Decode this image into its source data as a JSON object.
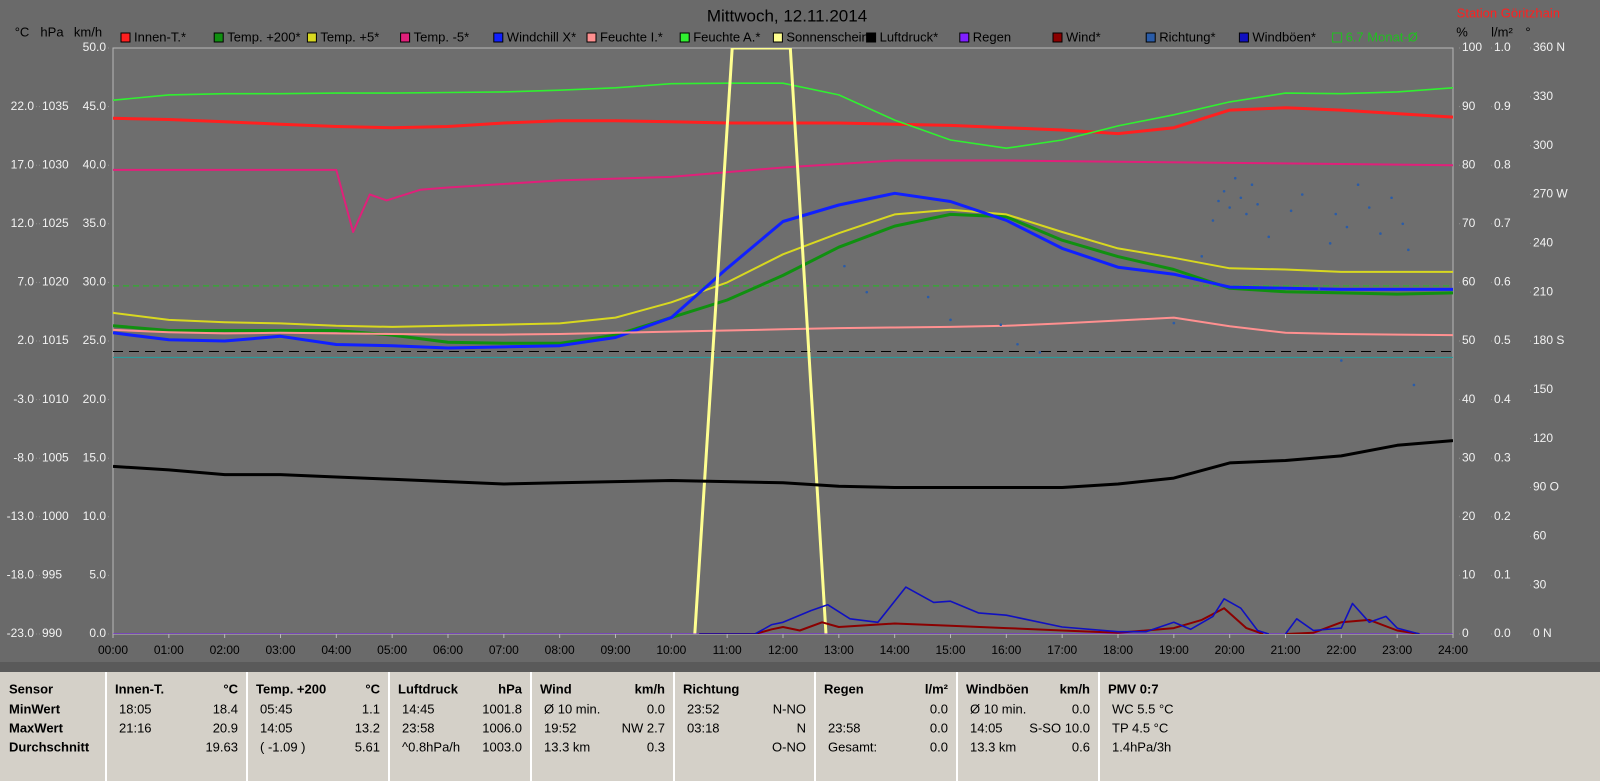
{
  "chart_data": {
    "type": "line",
    "title": "Mittwoch, 12.11.2014",
    "station": "Station Göritzhain",
    "xlim": [
      0,
      24
    ],
    "xticks": [
      {
        "value": 0,
        "label": "00:00"
      },
      {
        "value": 1,
        "label": "01:00"
      },
      {
        "value": 2,
        "label": "02:00"
      },
      {
        "value": 3,
        "label": "03:00"
      },
      {
        "value": 4,
        "label": "04:00"
      },
      {
        "value": 5,
        "label": "05:00"
      },
      {
        "value": 6,
        "label": "06:00"
      },
      {
        "value": 7,
        "label": "07:00"
      },
      {
        "value": 8,
        "label": "08:00"
      },
      {
        "value": 9,
        "label": "09:00"
      },
      {
        "value": 10,
        "label": "10:00"
      },
      {
        "value": 11,
        "label": "11:00"
      },
      {
        "value": 12,
        "label": "12:00"
      },
      {
        "value": 13,
        "label": "13:00"
      },
      {
        "value": 14,
        "label": "14:00"
      },
      {
        "value": 15,
        "label": "15:00"
      },
      {
        "value": 16,
        "label": "16:00"
      },
      {
        "value": 17,
        "label": "17:00"
      },
      {
        "value": 18,
        "label": "18:00"
      },
      {
        "value": 19,
        "label": "19:00"
      },
      {
        "value": 20,
        "label": "20:00"
      },
      {
        "value": 21,
        "label": "21:00"
      },
      {
        "value": 22,
        "label": "22:00"
      },
      {
        "value": 23,
        "label": "23:00"
      },
      {
        "value": 24,
        "label": "24:00"
      }
    ],
    "axes": {
      "temp": {
        "unit": "°C",
        "lim": [
          -23,
          27
        ],
        "ticks": [
          {
            "value": -23,
            "label": "-23.0"
          },
          {
            "value": -18,
            "label": "-18.0"
          },
          {
            "value": -13,
            "label": "-13.0"
          },
          {
            "value": -8,
            "label": "-8.0"
          },
          {
            "value": -3,
            "label": "-3.0"
          },
          {
            "value": 2,
            "label": "2.0"
          },
          {
            "value": 7,
            "label": "7.0"
          },
          {
            "value": 12,
            "label": "12.0"
          },
          {
            "value": 17,
            "label": "17.0"
          },
          {
            "value": 22,
            "label": "22.0"
          }
        ]
      },
      "pressure": {
        "unit": "hPa",
        "lim": [
          990,
          1040
        ],
        "ticks": [
          990,
          995,
          1000,
          1005,
          1010,
          1015,
          1020,
          1025,
          1030,
          1035
        ]
      },
      "speed": {
        "unit": "km/h",
        "lim": [
          0,
          50
        ],
        "ticks": [
          {
            "value": 0,
            "label": "0.0"
          },
          {
            "value": 5,
            "label": "5.0"
          },
          {
            "value": 10,
            "label": "10.0"
          },
          {
            "value": 15,
            "label": "15.0"
          },
          {
            "value": 20,
            "label": "20.0"
          },
          {
            "value": 25,
            "label": "25.0"
          },
          {
            "value": 30,
            "label": "30.0"
          },
          {
            "value": 35,
            "label": "35.0"
          },
          {
            "value": 40,
            "label": "40.0"
          },
          {
            "value": 45,
            "label": "45.0"
          },
          {
            "value": 50,
            "label": "50.0"
          }
        ]
      },
      "humidity": {
        "unit": "%",
        "lim": [
          0,
          100
        ],
        "ticks": [
          0,
          10,
          20,
          30,
          40,
          50,
          60,
          70,
          80,
          90,
          100
        ]
      },
      "rain": {
        "unit": "l/m²",
        "lim": [
          0,
          1
        ],
        "ticks": [
          {
            "value": 0,
            "label": "0.0"
          },
          0.1,
          0.2,
          0.3,
          0.4,
          0.5,
          0.6,
          0.7,
          0.8,
          0.9,
          {
            "value": 1,
            "label": "1.0"
          }
        ]
      },
      "direction": {
        "unit": "°",
        "lim": [
          0,
          360
        ],
        "ticks": [
          {
            "value": 0,
            "label": "0 N"
          },
          30,
          60,
          {
            "value": 90,
            "label": "90 O"
          },
          120,
          150,
          {
            "value": 180,
            "label": "180 S"
          },
          210,
          240,
          {
            "value": 270,
            "label": "270 W"
          },
          300,
          330,
          {
            "value": 360,
            "label": "360 N"
          }
        ]
      }
    },
    "series": [
      {
        "name": "Innen-T.*",
        "color": "#ff2020",
        "axis": "temp",
        "width": 3,
        "x": [
          0,
          1,
          2,
          3,
          4,
          5,
          6,
          7,
          8,
          9,
          10,
          11,
          12,
          13,
          14,
          15,
          16,
          17,
          18,
          19,
          20,
          21,
          22,
          23,
          24
        ],
        "values": [
          21.0,
          20.9,
          20.7,
          20.5,
          20.3,
          20.2,
          20.3,
          20.6,
          20.8,
          20.8,
          20.7,
          20.6,
          20.6,
          20.6,
          20.5,
          20.4,
          20.2,
          20.0,
          19.7,
          20.2,
          21.7,
          21.9,
          21.7,
          21.4,
          21.1
        ]
      },
      {
        "name": "Temp. +200*",
        "color": "#109010",
        "axis": "temp",
        "width": 3,
        "x": [
          0,
          1,
          2,
          3,
          4,
          5,
          6,
          7,
          8,
          9,
          10,
          11,
          12,
          13,
          14,
          15,
          16,
          17,
          18,
          19,
          20,
          21,
          22,
          23,
          24
        ],
        "values": [
          3.3,
          2.9,
          2.9,
          2.9,
          2.9,
          2.5,
          1.9,
          1.8,
          1.8,
          2.5,
          4.0,
          5.5,
          7.6,
          10.0,
          11.8,
          12.8,
          12.6,
          10.6,
          9.2,
          8.1,
          6.5,
          6.2,
          6.1,
          6.0,
          6.1
        ]
      },
      {
        "name": "Temp. +5*",
        "color": "#d8d820",
        "axis": "temp",
        "width": 2,
        "x": [
          0,
          1,
          2,
          3,
          4,
          5,
          6,
          7,
          8,
          9,
          10,
          11,
          12,
          13,
          14,
          15,
          16,
          17,
          18,
          19,
          20,
          21,
          22,
          23,
          24
        ],
        "values": [
          4.4,
          3.8,
          3.6,
          3.5,
          3.3,
          3.2,
          3.3,
          3.4,
          3.5,
          4.0,
          5.3,
          7.0,
          9.4,
          11.2,
          12.8,
          13.2,
          12.8,
          11.3,
          9.9,
          9.1,
          8.2,
          8.1,
          7.9,
          7.9,
          7.9
        ]
      },
      {
        "name": "Temp. -5*",
        "color": "#e0207a",
        "axis": "temp",
        "width": 2,
        "x": [
          0,
          4,
          4.3,
          4.6,
          4.9,
          5.5,
          6,
          8,
          10,
          12,
          14,
          16,
          18,
          20,
          22,
          24
        ],
        "values": [
          16.6,
          16.6,
          11.3,
          14.5,
          14.0,
          14.9,
          15.1,
          15.7,
          16.0,
          16.8,
          17.4,
          17.4,
          17.3,
          17.2,
          17.1,
          17.0
        ]
      },
      {
        "name": "Windchill X*",
        "color": "#1020ff",
        "axis": "temp",
        "width": 3,
        "x": [
          0,
          1,
          2,
          3,
          4,
          5,
          6,
          7,
          8,
          9,
          10,
          11,
          12,
          13,
          14,
          15,
          16,
          17,
          18,
          19,
          20,
          21,
          22,
          23,
          24
        ],
        "values": [
          2.7,
          2.1,
          2.0,
          2.4,
          1.7,
          1.6,
          1.4,
          1.5,
          1.6,
          2.3,
          4.0,
          8.2,
          12.2,
          13.6,
          14.6,
          13.9,
          12.3,
          9.9,
          8.3,
          7.7,
          6.6,
          6.5,
          6.4,
          6.4,
          6.4
        ]
      },
      {
        "name": "Feuchte I.*",
        "color": "#ff9090",
        "axis": "humidity",
        "width": 2,
        "x": [
          0,
          1,
          2,
          3,
          4,
          5,
          6,
          7,
          8,
          9,
          10,
          11,
          12,
          13,
          14,
          15,
          16,
          17,
          18,
          19,
          20,
          21,
          22,
          23,
          24
        ],
        "values": [
          51.9,
          51.5,
          51.3,
          51.4,
          51.3,
          51.2,
          51.1,
          51.1,
          51.2,
          51.4,
          51.6,
          51.8,
          52.0,
          52.2,
          52.3,
          52.4,
          52.6,
          53.0,
          53.5,
          54.0,
          52.5,
          51.4,
          51.2,
          51.1,
          51.0
        ]
      },
      {
        "name": "Feuchte A.*",
        "color": "#30f030",
        "axis": "humidity",
        "width": 1.6,
        "x": [
          0,
          1,
          2,
          3,
          4,
          5,
          6,
          7,
          8,
          9,
          10,
          11,
          12,
          13,
          14,
          15,
          16,
          17,
          18,
          19,
          20,
          21,
          22,
          23,
          24
        ],
        "values": [
          91.1,
          92.0,
          92.2,
          92.2,
          92.3,
          92.3,
          92.4,
          92.5,
          92.8,
          93.2,
          93.9,
          94.0,
          94.0,
          92.0,
          87.7,
          84.3,
          82.9,
          84.3,
          86.7,
          88.6,
          90.8,
          92.3,
          92.2,
          92.5,
          93.2
        ]
      },
      {
        "name": "Sonnenschein",
        "color": "#ffff90",
        "axis": "humidity",
        "width": 3,
        "x": [
          10.42,
          11.09,
          12.13,
          12.77
        ],
        "values": [
          0,
          100,
          100,
          0
        ]
      },
      {
        "name": "Luftdruck*",
        "color": "#000000",
        "axis": "pressure",
        "width": 3,
        "x": [
          0,
          1,
          2,
          3,
          4,
          5,
          6,
          7,
          8,
          9,
          10,
          11,
          12,
          13,
          14,
          15,
          16,
          17,
          18,
          19,
          20,
          21,
          22,
          23,
          24
        ],
        "values": [
          1004.3,
          1004.0,
          1003.6,
          1003.6,
          1003.4,
          1003.2,
          1003.0,
          1002.8,
          1002.9,
          1003.0,
          1003.1,
          1003.0,
          1002.9,
          1002.6,
          1002.5,
          1002.5,
          1002.5,
          1002.5,
          1002.8,
          1003.3,
          1004.6,
          1004.8,
          1005.2,
          1006.1,
          1006.5
        ]
      },
      {
        "name": "Regen",
        "color": "#8020ff",
        "axis": "rain",
        "width": 1,
        "x": [
          0,
          24
        ],
        "values": [
          0,
          0
        ]
      },
      {
        "name": "Wind*",
        "color": "#8b0000",
        "axis": "speed",
        "width": 2,
        "x": [
          10.5,
          11.5,
          11.8,
          12,
          12.3,
          12.7,
          13,
          14,
          15,
          16,
          17,
          18,
          19,
          19.5,
          19.9,
          20.3,
          20.6,
          20.85,
          21,
          21.5,
          22,
          22.5,
          23,
          23.4
        ],
        "values": [
          0,
          0,
          0.4,
          0.6,
          0.3,
          1.0,
          0.6,
          0.9,
          0.7,
          0.5,
          0.3,
          0.1,
          0.5,
          1.2,
          2.2,
          0.5,
          0,
          null,
          0,
          0.1,
          1.0,
          1.2,
          0.3,
          0
        ]
      },
      {
        "name": "Richtung*",
        "color": "#2a5ca8",
        "axis": "direction",
        "mark": "dot",
        "x": [
          13.1,
          13.5,
          14.6,
          15.0,
          15.9,
          16.6,
          16.2,
          19.0,
          19.5,
          19.7,
          19.8,
          19.9,
          20.0,
          20.1,
          20.2,
          20.3,
          20.4,
          20.5,
          20.7,
          21.1,
          21.3,
          21.6,
          21.9,
          22.1,
          22.3,
          22.5,
          22.7,
          22.9,
          23.1,
          23.2,
          23.3,
          22.0,
          21.8
        ],
        "values": [
          226,
          210,
          207,
          193,
          190,
          173,
          178,
          191,
          232,
          254,
          266,
          272,
          262,
          280,
          268,
          258,
          276,
          264,
          244,
          260,
          270,
          212,
          258,
          250,
          276,
          262,
          246,
          268,
          252,
          236,
          153,
          168,
          240
        ]
      },
      {
        "name": "Windböen*",
        "color": "#1010c0",
        "axis": "speed",
        "width": 1.6,
        "x": [
          10.5,
          11.5,
          11.8,
          12,
          12.5,
          12.8,
          13.2,
          13.7,
          14.2,
          14.7,
          15,
          15.5,
          16,
          17,
          18,
          18.5,
          19,
          19.3,
          19.7,
          19.9,
          20.2,
          20.5,
          20.7,
          20.85,
          21,
          21.2,
          21.5,
          22,
          22.2,
          22.5,
          22.8,
          23,
          23.4
        ],
        "values": [
          0,
          0,
          0.8,
          1.0,
          2.0,
          2.5,
          1.3,
          1.0,
          4.0,
          2.7,
          2.8,
          1.8,
          1.6,
          0.6,
          0.2,
          0.2,
          1.0,
          0.4,
          1.5,
          3.0,
          2.2,
          0.3,
          0,
          null,
          0,
          1.3,
          0.3,
          0.5,
          2.6,
          1.0,
          1.5,
          0.5,
          0
        ]
      }
    ],
    "monthly_average": {
      "value": 6.7,
      "label": "6.7 Monat-Ø",
      "axis": "temp",
      "color": "#20c020"
    },
    "threshold_lines": [
      {
        "axis": "temp",
        "value": 1.1,
        "color": "#000000"
      },
      {
        "axis": "temp",
        "value": 0.6,
        "color": "#20a0a0"
      }
    ]
  },
  "table": {
    "columns": [
      {
        "header": [
          "Sensor"
        ],
        "rows": [
          [
            "MinWert"
          ],
          [
            "MaxWert"
          ],
          [
            "Durchschnitt"
          ]
        ]
      },
      {
        "header": [
          "Innen-T.",
          "°C"
        ],
        "rows": [
          [
            "18:05",
            "18.4"
          ],
          [
            "21:16",
            "20.9"
          ],
          [
            null,
            "19.63"
          ]
        ]
      },
      {
        "header": [
          "Temp. +200",
          "°C"
        ],
        "rows": [
          [
            "05:45",
            "1.1"
          ],
          [
            "14:05",
            "13.2"
          ],
          [
            "( -1.09 )",
            "5.61"
          ]
        ]
      },
      {
        "header": [
          "Luftdruck",
          "hPa"
        ],
        "rows": [
          [
            "14:45",
            "1001.8"
          ],
          [
            "23:58",
            "1006.0"
          ],
          [
            "^0.8hPa/h",
            "1003.0"
          ]
        ]
      },
      {
        "header": [
          "Wind",
          "km/h"
        ],
        "rows": [
          [
            "Ø 10 min.",
            "0.0"
          ],
          [
            "19:52",
            "NW 2.7"
          ],
          [
            "13.3 km",
            "0.3"
          ]
        ]
      },
      {
        "header": [
          "Richtung"
        ],
        "rows": [
          [
            "23:52",
            "N-NO"
          ],
          [
            "03:18",
            "N"
          ],
          [
            null,
            "O-NO"
          ]
        ]
      },
      {
        "header": [
          "Regen",
          "l/m²"
        ],
        "rows": [
          [
            null,
            "0.0"
          ],
          [
            "23:58",
            "0.0"
          ],
          [
            "Gesamt:",
            "0.0"
          ]
        ]
      },
      {
        "header": [
          "Windböen",
          "km/h"
        ],
        "rows": [
          [
            "Ø 10 min.",
            "0.0"
          ],
          [
            "14:05",
            "S-SO 10.0"
          ],
          [
            "13.3 km",
            "0.6"
          ]
        ]
      },
      {
        "header": [
          "PMV 0:7"
        ],
        "rows": [
          [
            "WC 5.5 °C"
          ],
          [
            "TP 4.5 °C"
          ],
          [
            "1.4hPa/3h"
          ]
        ]
      }
    ]
  }
}
